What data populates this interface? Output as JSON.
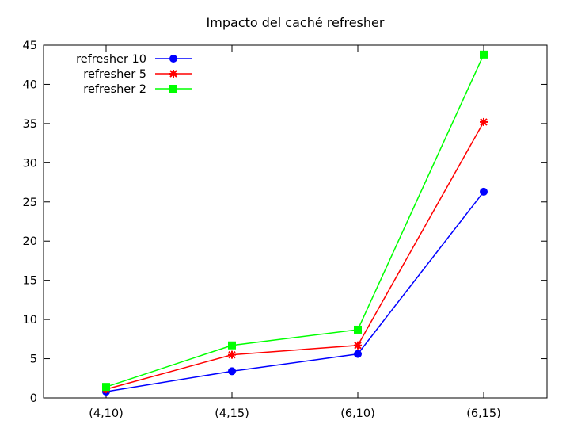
{
  "chart_data": {
    "type": "line",
    "title": "Impacto del caché refresher",
    "xlabel": "",
    "ylabel": "",
    "categories": [
      "(4,10)",
      "(4,15)",
      "(6,10)",
      "(6,15)"
    ],
    "ylim": [
      0,
      45
    ],
    "yticks": [
      0,
      5,
      10,
      15,
      20,
      25,
      30,
      35,
      40,
      45
    ],
    "grid": false,
    "legend_position": "top-left",
    "series": [
      {
        "name": "refresher 10",
        "marker": "circle",
        "color": "#0000ff",
        "values": [
          0.8,
          3.4,
          5.6,
          26.3
        ]
      },
      {
        "name": "refresher 5",
        "marker": "star",
        "color": "#ff0000",
        "values": [
          1.1,
          5.5,
          6.7,
          35.2
        ]
      },
      {
        "name": "refresher 2",
        "marker": "square",
        "color": "#00ff00",
        "values": [
          1.4,
          6.7,
          8.7,
          43.8
        ]
      }
    ]
  }
}
